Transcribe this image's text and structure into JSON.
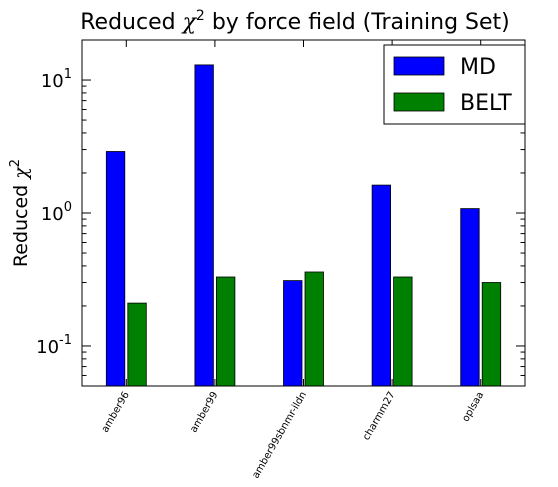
{
  "chart_data": {
    "type": "bar",
    "title": "Reduced χ²  by force field (Training Set)",
    "title_parts": {
      "prefix": "Reduced ",
      "symbol": "χ",
      "exponent": "2",
      "suffix": "  by force field (Training Set)"
    },
    "ylabel": "Reduced χ²",
    "ylabel_parts": {
      "prefix": "Reduced ",
      "symbol": "χ",
      "exponent": "2"
    },
    "xlabel": "",
    "yscale": "log",
    "ylim": [
      0.05,
      20
    ],
    "yticks": [
      {
        "value": 0.1,
        "base": "10",
        "exp": "-1"
      },
      {
        "value": 1,
        "base": "10",
        "exp": "0"
      },
      {
        "value": 10,
        "base": "10",
        "exp": "1"
      }
    ],
    "categories": [
      "amber96",
      "amber99",
      "amber99sbnmr-ildn",
      "charmm27",
      "oplsaa"
    ],
    "series": [
      {
        "name": "MD",
        "color": "#0000ff",
        "values": [
          2.9,
          13.0,
          0.31,
          1.62,
          1.08
        ]
      },
      {
        "name": "BELT",
        "color": "#008000",
        "values": [
          0.21,
          0.33,
          0.36,
          0.33,
          0.3
        ]
      }
    ],
    "legend_position": "top-right",
    "grid": false
  }
}
